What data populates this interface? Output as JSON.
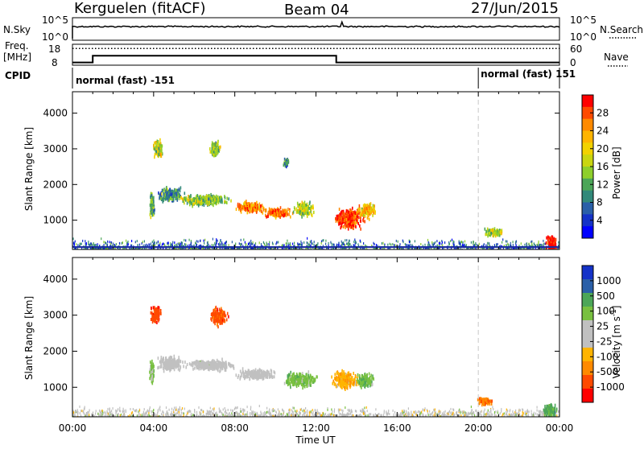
{
  "header": {
    "station": "Kerguelen (fitACF)",
    "beam": "Beam 04",
    "date": "27/Jun/2015"
  },
  "noise_panel": {
    "left_label": "N.Sky",
    "left_ticks": [
      "10^5",
      "10^0"
    ],
    "right_label": "N.Search",
    "right_ticks": [
      "10^5",
      "10^0"
    ]
  },
  "freq_panel": {
    "label_line1": "Freq.",
    "label_line2": "[MHz]",
    "left_ticks": [
      "18",
      "8"
    ],
    "right_label": "Nave",
    "right_ticks": [
      "60",
      "0"
    ],
    "freq_steps": [
      {
        "t0": 0.0,
        "t1": 1.0,
        "value": 9.0
      },
      {
        "t0": 1.0,
        "t1": 13.0,
        "value": 12.5
      },
      {
        "t0": 13.0,
        "t1": 24.0,
        "value": 9.0
      }
    ],
    "nave_level": 0.82
  },
  "cpid": {
    "label": "CPID",
    "segments": [
      {
        "text": "normal (fast) -151",
        "start_h": 0
      },
      {
        "text": "normal (fast) 151",
        "start_h": 20
      }
    ]
  },
  "chart_data": [
    {
      "type": "heatmap",
      "name": "power",
      "ylabel": "Slant Range [km]",
      "ylim": [
        180,
        4600
      ],
      "yticks": [
        "1000",
        "2000",
        "3000",
        "4000"
      ],
      "xlim": [
        0,
        24
      ],
      "colorbar": {
        "label": "Power [dB]",
        "ticks": [
          "28",
          "24",
          "20",
          "16",
          "12",
          "8",
          "4"
        ],
        "colors": [
          "#ff0000",
          "#ff4a00",
          "#ff8a00",
          "#ffb400",
          "#f2d200",
          "#c9d610",
          "#8ecf2b",
          "#4ca658",
          "#32897a",
          "#2a5fa8",
          "#1432c8",
          "#0000ff"
        ]
      },
      "clusters": [
        {
          "t": 3.9,
          "r": 1450,
          "dt": 0.15,
          "dr": 450,
          "level": 0.35
        },
        {
          "t": 4.2,
          "r": 3050,
          "dt": 0.3,
          "dr": 300,
          "level": 0.55
        },
        {
          "t": 4.8,
          "r": 1750,
          "dt": 0.8,
          "dr": 250,
          "level": 0.3
        },
        {
          "t": 6.5,
          "r": 1600,
          "dt": 1.6,
          "dr": 180,
          "level": 0.45
        },
        {
          "t": 7.0,
          "r": 3050,
          "dt": 0.3,
          "dr": 300,
          "level": 0.45
        },
        {
          "t": 8.8,
          "r": 1400,
          "dt": 0.9,
          "dr": 180,
          "level": 0.8
        },
        {
          "t": 10.1,
          "r": 1250,
          "dt": 0.9,
          "dr": 160,
          "level": 0.85
        },
        {
          "t": 11.4,
          "r": 1350,
          "dt": 0.6,
          "dr": 250,
          "level": 0.5
        },
        {
          "t": 13.6,
          "r": 1100,
          "dt": 0.9,
          "dr": 350,
          "level": 0.95
        },
        {
          "t": 14.5,
          "r": 1300,
          "dt": 0.5,
          "dr": 250,
          "level": 0.7
        },
        {
          "t": 10.5,
          "r": 2650,
          "dt": 0.15,
          "dr": 150,
          "level": 0.3
        },
        {
          "t": 20.8,
          "r": 700,
          "dt": 0.6,
          "dr": 150,
          "level": 0.5
        },
        {
          "t": 23.6,
          "r": 400,
          "dt": 0.35,
          "dr": 250,
          "level": 1.0
        }
      ]
    },
    {
      "type": "heatmap",
      "name": "velocity",
      "ylabel": "Slant Range [km]",
      "xlabel": "Time UT",
      "ylim": [
        180,
        4600
      ],
      "yticks": [
        "1000",
        "2000",
        "3000",
        "4000"
      ],
      "xlim": [
        0,
        24
      ],
      "xticks": [
        "00:00",
        "04:00",
        "08:00",
        "12:00",
        "16:00",
        "20:00",
        "00:00"
      ],
      "colorbar": {
        "label": "Velocity [m s^-1]",
        "ticks": [
          "1000",
          "500",
          "100",
          "25",
          "-25",
          "-100",
          "-500",
          "-1000"
        ],
        "colors": [
          "#1432c8",
          "#2a5fa8",
          "#4ca658",
          "#78c040",
          "#c0c0c0",
          "#c0c0c0",
          "#ffb400",
          "#ff8a00",
          "#ff4a00",
          "#ff0000"
        ]
      },
      "clusters": [
        {
          "t": 4.1,
          "r": 3050,
          "dt": 0.3,
          "dr": 300,
          "v": -0.8
        },
        {
          "t": 3.9,
          "r": 1450,
          "dt": 0.15,
          "dr": 450,
          "v": 0.3
        },
        {
          "t": 4.8,
          "r": 1700,
          "dt": 0.8,
          "dr": 250,
          "v": 0.0
        },
        {
          "t": 6.8,
          "r": 1650,
          "dt": 1.5,
          "dr": 180,
          "v": 0.0
        },
        {
          "t": 7.2,
          "r": 3000,
          "dt": 0.5,
          "dr": 300,
          "v": -0.75
        },
        {
          "t": 9.0,
          "r": 1400,
          "dt": 1.2,
          "dr": 180,
          "v": 0.0
        },
        {
          "t": 11.2,
          "r": 1250,
          "dt": 1.0,
          "dr": 250,
          "v": 0.35
        },
        {
          "t": 13.4,
          "r": 1250,
          "dt": 0.8,
          "dr": 300,
          "v": -0.35
        },
        {
          "t": 14.4,
          "r": 1200,
          "dt": 0.5,
          "dr": 250,
          "v": 0.4
        },
        {
          "t": 20.3,
          "r": 650,
          "dt": 0.5,
          "dr": 120,
          "v": -0.6
        },
        {
          "t": 23.5,
          "r": 400,
          "dt": 0.4,
          "dr": 250,
          "v": 0.5
        }
      ]
    }
  ]
}
